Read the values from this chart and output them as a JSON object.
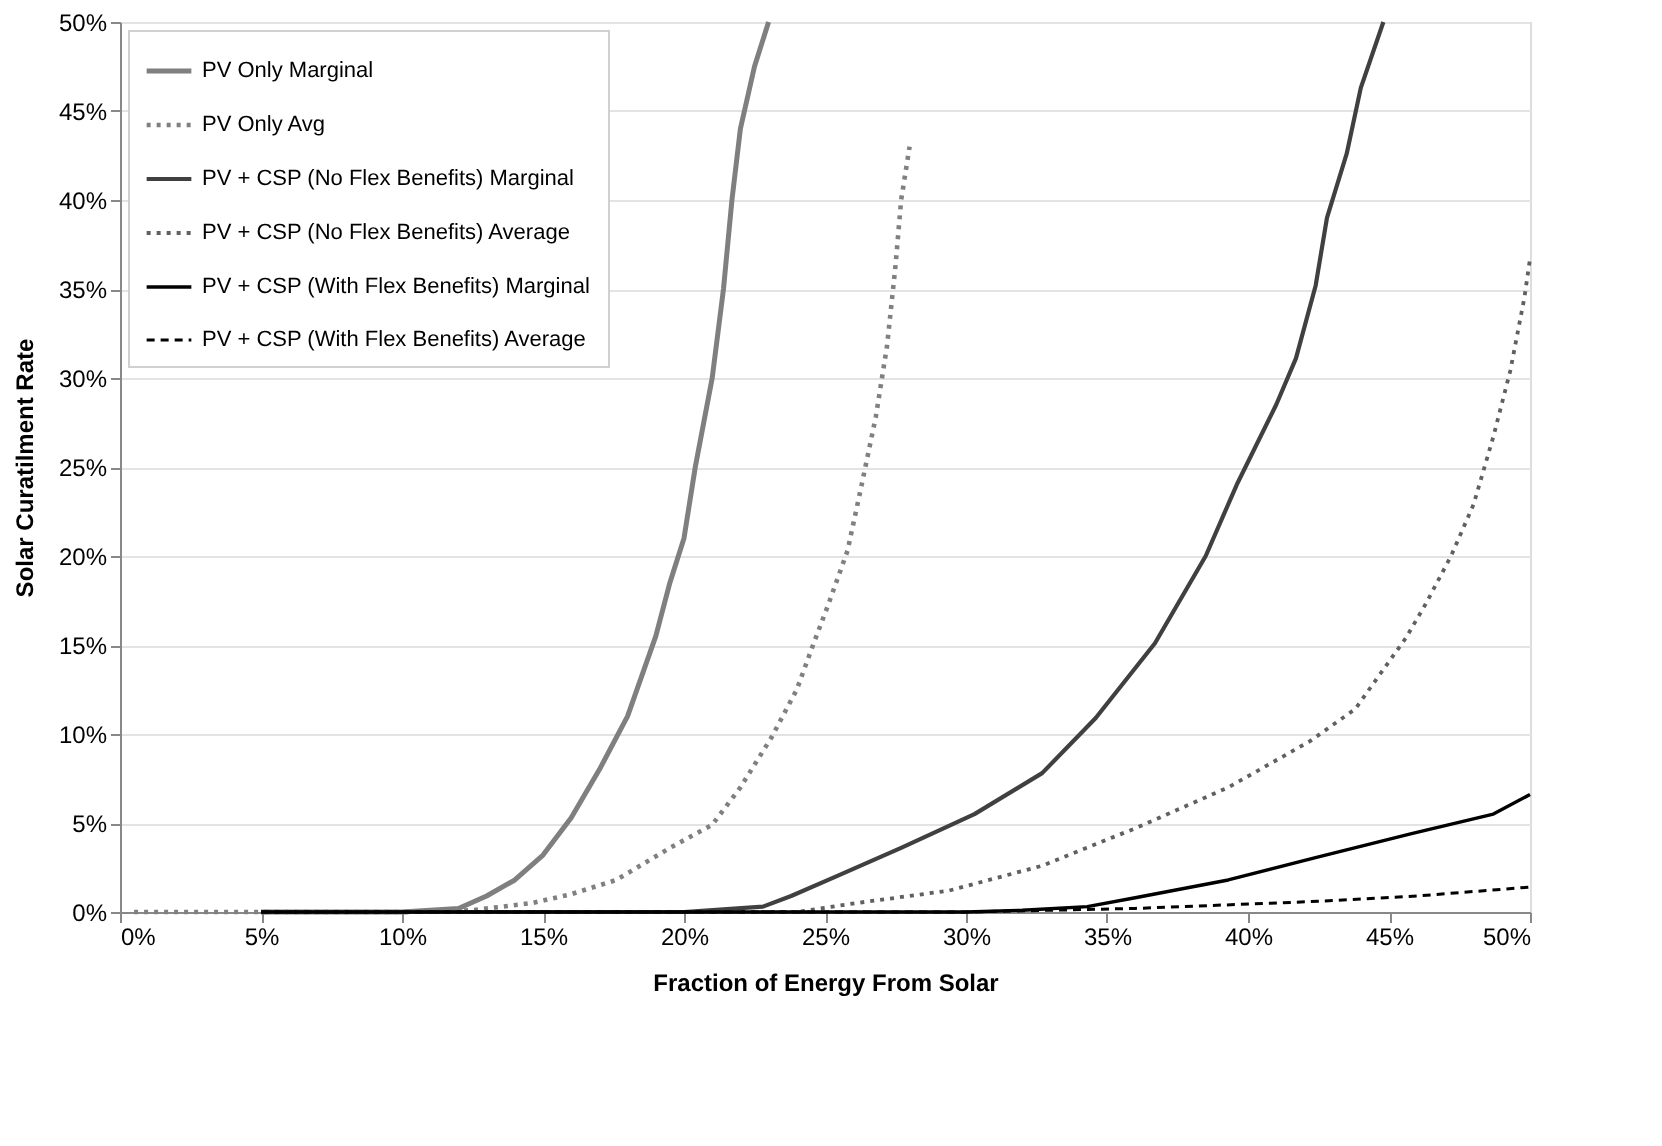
{
  "chart_data": {
    "type": "line",
    "xlabel": "Fraction of Energy From Solar",
    "ylabel": "Solar Curatilment Rate",
    "xlim": [
      0,
      50
    ],
    "ylim": [
      0,
      50
    ],
    "xticks": [
      {
        "value": 0,
        "label": "0%"
      },
      {
        "value": 5,
        "label": "5%"
      },
      {
        "value": 10,
        "label": "10%"
      },
      {
        "value": 15,
        "label": "15%"
      },
      {
        "value": 20,
        "label": "20%"
      },
      {
        "value": 25,
        "label": "25%"
      },
      {
        "value": 30,
        "label": "30%"
      },
      {
        "value": 35,
        "label": "35%"
      },
      {
        "value": 40,
        "label": "40%"
      },
      {
        "value": 45,
        "label": "45%"
      },
      {
        "value": 50,
        "label": "50%"
      }
    ],
    "yticks": [
      {
        "value": 0,
        "label": "0%"
      },
      {
        "value": 5,
        "label": "5%"
      },
      {
        "value": 10,
        "label": "10%"
      },
      {
        "value": 15,
        "label": "15%"
      },
      {
        "value": 20,
        "label": "20%"
      },
      {
        "value": 25,
        "label": "25%"
      },
      {
        "value": 30,
        "label": "30%"
      },
      {
        "value": 35,
        "label": "35%"
      },
      {
        "value": 40,
        "label": "40%"
      },
      {
        "value": 45,
        "label": "45%"
      },
      {
        "value": 50,
        "label": "50%"
      }
    ],
    "grid": "y",
    "legend": "top left",
    "marker": "none",
    "series": [
      {
        "name": "PV Only Marginal",
        "color": "#7f7f7f",
        "line_style": "solid",
        "x": [
          5,
          10,
          11,
          12,
          13,
          14,
          15,
          16,
          17,
          18,
          19,
          19.5,
          20,
          20.4,
          21,
          21.4,
          21.7,
          22,
          22.5,
          23
        ],
        "values": [
          0,
          0,
          0.1,
          0.2,
          0.9,
          1.8,
          3.2,
          5.3,
          8,
          11,
          15.5,
          18.5,
          21,
          25,
          30,
          35,
          40,
          44,
          47.5,
          50
        ]
      },
      {
        "name": "PV Only Avg",
        "color": "#808080",
        "line_style": "dotted",
        "x": [
          0.5,
          10,
          12.5,
          14.6,
          16,
          17.6,
          19.5,
          21,
          22,
          23.1,
          24,
          24.6,
          25.1,
          25.8,
          26.3,
          26.8,
          27.2,
          27.5,
          27.7,
          28
        ],
        "values": [
          0,
          0,
          0.1,
          0.5,
          1,
          1.8,
          3.6,
          4.9,
          7,
          9.8,
          12.5,
          15.1,
          17.2,
          20.3,
          24,
          27.8,
          31.8,
          36.3,
          40,
          43
        ]
      },
      {
        "name": "PV + CSP (No Flex Benefits) Marginal",
        "color": "#404040",
        "line_style": "solid",
        "x": [
          5,
          20,
          22.8,
          23.8,
          25.4,
          27.7,
          30.3,
          32.7,
          34.6,
          36.7,
          38.5,
          39.6,
          41,
          41.7,
          42.4,
          42.8,
          43.5,
          44,
          44.8
        ],
        "values": [
          0,
          0,
          0.3,
          0.9,
          2,
          3.6,
          5.5,
          7.8,
          10.9,
          15.1,
          20,
          24,
          28.5,
          31.1,
          35.2,
          39,
          42.6,
          46.3,
          50
        ]
      },
      {
        "name": "PV + CSP (No Flex Benefits) Average",
        "color": "#606060",
        "line_style": "dotted",
        "x": [
          5,
          24,
          26.1,
          29.4,
          32.7,
          36,
          39.3,
          42.2,
          43.8,
          45.6,
          46.3,
          47.2,
          48,
          48.7,
          49.3,
          49.8,
          50
        ],
        "values": [
          0,
          0,
          0.5,
          1.2,
          2.6,
          4.7,
          7,
          9.6,
          11.4,
          15.4,
          17.3,
          20,
          22.9,
          26.7,
          30.4,
          34.5,
          36.7
        ]
      },
      {
        "name": "PV + CSP (With Flex Benefits) Marginal",
        "color": "#000000",
        "line_style": "solid",
        "x": [
          5,
          30,
          32,
          34.3,
          36,
          39.3,
          42.5,
          45.8,
          48.7,
          50
        ],
        "values": [
          0,
          0,
          0.1,
          0.3,
          0.8,
          1.8,
          3.1,
          4.4,
          5.5,
          6.6
        ]
      },
      {
        "name": "PV + CSP (With Flex Benefits) Average",
        "color": "#000000",
        "line_style": "dashed",
        "x": [
          5,
          30,
          36,
          42.5,
          46,
          50
        ],
        "values": [
          0,
          0,
          0.2,
          0.6,
          0.9,
          1.4
        ]
      }
    ]
  }
}
